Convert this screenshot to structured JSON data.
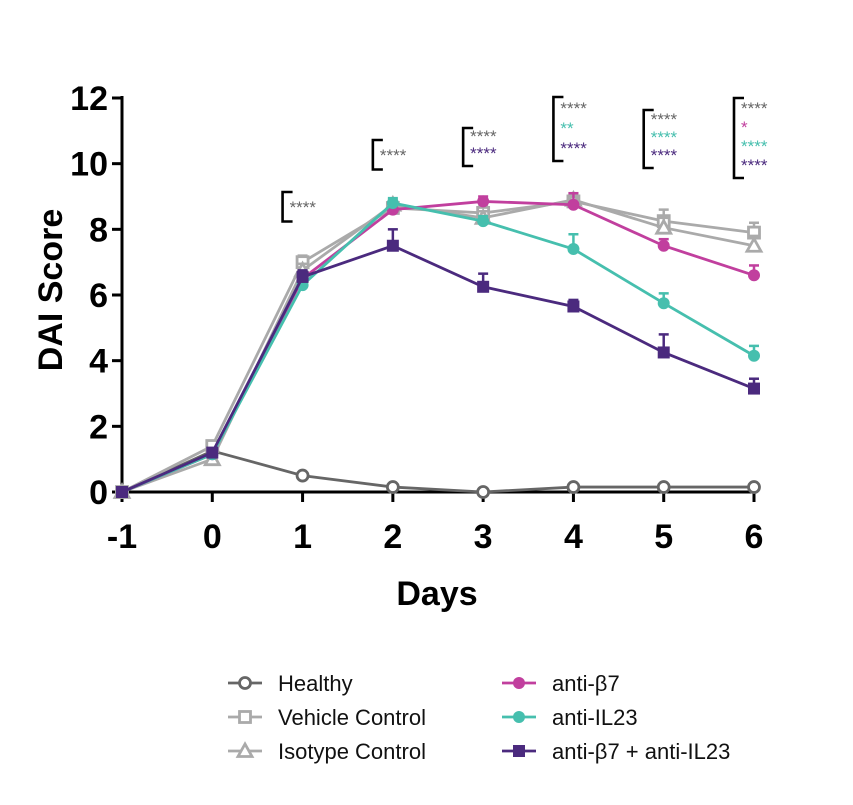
{
  "chart_data": {
    "type": "line",
    "xlabel": "Days",
    "ylabel": "DAI Score",
    "x": [
      -1,
      0,
      1,
      2,
      3,
      4,
      5,
      6
    ],
    "x_tick_labels": [
      "-1",
      "0",
      "1",
      "2",
      "3",
      "4",
      "5",
      "6"
    ],
    "y_ticks": [
      0,
      2,
      4,
      6,
      8,
      10,
      12
    ],
    "y_tick_labels": [
      "0",
      "2",
      "4",
      "6",
      "8",
      "10",
      "12"
    ],
    "xlim": [
      -1,
      6
    ],
    "ylim": [
      0,
      12
    ],
    "grid": false,
    "legend_position": "bottom",
    "series": [
      {
        "name": "Healthy",
        "color": "#666666",
        "marker": "open-circle",
        "values": [
          0,
          1.25,
          0.5,
          0.15,
          0.0,
          0.15,
          0.15,
          0.15
        ],
        "errors": [
          0,
          0,
          0,
          0,
          0,
          0,
          0,
          0
        ]
      },
      {
        "name": "Vehicle Control",
        "color": "#aaaaaa",
        "marker": "open-square",
        "values": [
          0,
          1.4,
          7.0,
          8.65,
          8.5,
          8.85,
          8.25,
          7.9
        ],
        "errors": [
          0,
          0.15,
          0.2,
          0.15,
          0.2,
          0.2,
          0.35,
          0.3
        ]
      },
      {
        "name": "Isotype Control",
        "color": "#aaaaaa",
        "marker": "open-triangle",
        "values": [
          0,
          1.0,
          6.75,
          8.75,
          8.35,
          8.9,
          8.05,
          7.5
        ],
        "errors": [
          0,
          0.1,
          0.2,
          0.15,
          0.2,
          0.2,
          0.3,
          0.3
        ]
      },
      {
        "name": "anti-β7",
        "color": "#c13f9e",
        "marker": "filled-circle",
        "values": [
          0,
          1.15,
          6.5,
          8.6,
          8.85,
          8.75,
          7.5,
          6.6
        ],
        "errors": [
          0,
          0.1,
          0.2,
          0.15,
          0.15,
          0.35,
          0.2,
          0.3
        ]
      },
      {
        "name": "anti-IL23",
        "color": "#46bfae",
        "marker": "filled-circle",
        "values": [
          0,
          1.15,
          6.3,
          8.8,
          8.25,
          7.4,
          5.75,
          4.15
        ],
        "errors": [
          0,
          0.1,
          0.2,
          0.15,
          0.15,
          0.45,
          0.3,
          0.3
        ]
      },
      {
        "name": "anti-β7 + anti-IL23",
        "color": "#4b2a7e",
        "marker": "filled-square",
        "values": [
          0,
          1.2,
          6.55,
          7.5,
          6.25,
          5.65,
          4.25,
          3.15
        ],
        "errors": [
          0,
          0.1,
          0.2,
          0.5,
          0.4,
          0.2,
          0.55,
          0.3
        ]
      }
    ],
    "annotations": [
      {
        "day": 1,
        "labels": [
          {
            "text": "****",
            "color": "#666666"
          }
        ]
      },
      {
        "day": 2,
        "labels": [
          {
            "text": "****",
            "color": "#666666"
          }
        ]
      },
      {
        "day": 3,
        "labels": [
          {
            "text": "****",
            "color": "#666666"
          },
          {
            "text": "****",
            "color": "#4b2a7e"
          }
        ]
      },
      {
        "day": 4,
        "labels": [
          {
            "text": "****",
            "color": "#666666"
          },
          {
            "text": "**",
            "color": "#46bfae"
          },
          {
            "text": "****",
            "color": "#4b2a7e"
          }
        ]
      },
      {
        "day": 5,
        "labels": [
          {
            "text": "****",
            "color": "#666666"
          },
          {
            "text": "****",
            "color": "#46bfae"
          },
          {
            "text": "****",
            "color": "#4b2a7e"
          }
        ]
      },
      {
        "day": 6,
        "labels": [
          {
            "text": "****",
            "color": "#666666"
          },
          {
            "text": "*",
            "color": "#c13f9e"
          },
          {
            "text": "****",
            "color": "#46bfae"
          },
          {
            "text": "****",
            "color": "#4b2a7e"
          }
        ]
      }
    ]
  }
}
